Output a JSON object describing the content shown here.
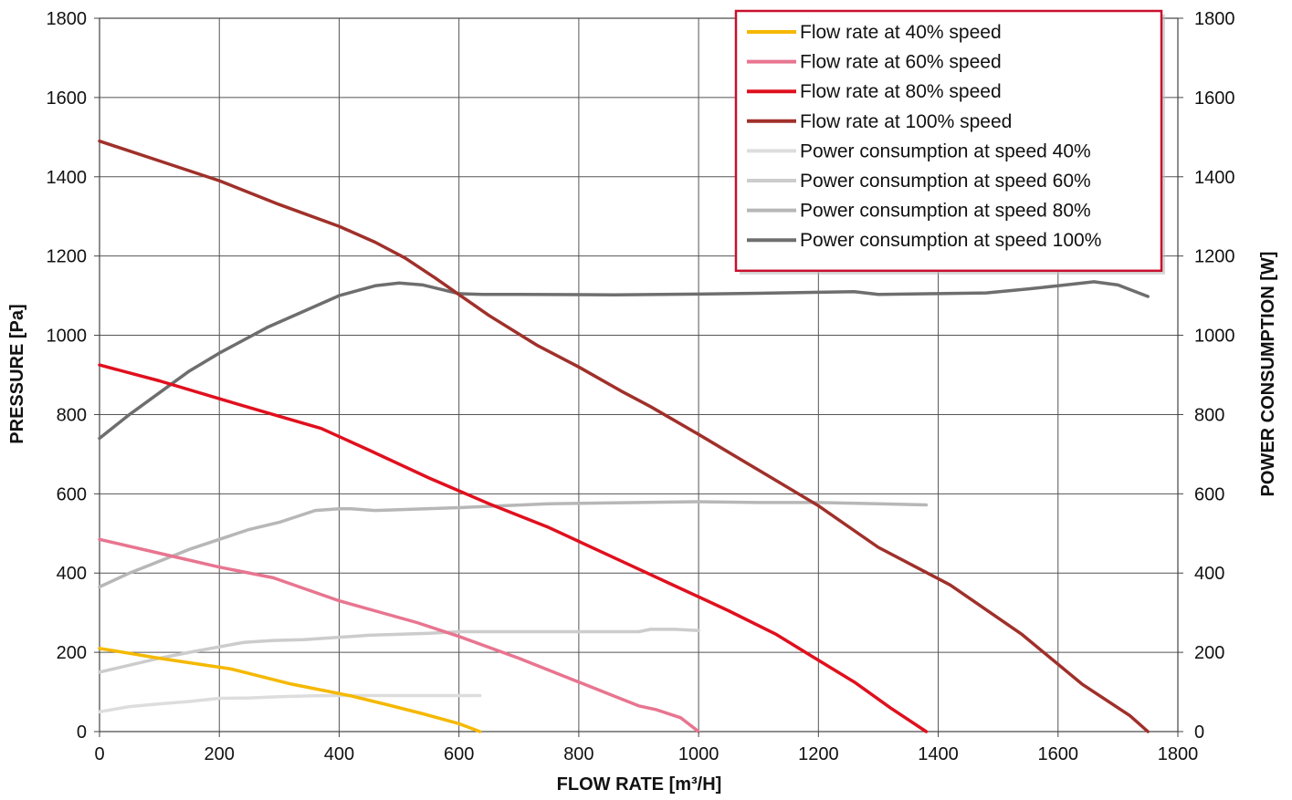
{
  "chart_data": {
    "type": "line",
    "xlabel": "FLOW RATE [m³/H]",
    "ylabel": "PRESSURE [Pa]",
    "y2label": "POWER CONSUMPTION [W]",
    "xlim": [
      0,
      1800
    ],
    "ylim": [
      0,
      1800
    ],
    "y2lim": [
      0,
      1800
    ],
    "xticks": [
      "0",
      "200",
      "400",
      "600",
      "800",
      "1000",
      "1200",
      "1400",
      "1600",
      "1800"
    ],
    "yticks": [
      "0",
      "200",
      "400",
      "600",
      "800",
      "1000",
      "1200",
      "1400",
      "1600",
      "1800"
    ],
    "y2ticks": [
      "0",
      "200",
      "400",
      "600",
      "800",
      "1000",
      "1200",
      "1400",
      "1600",
      "1800"
    ],
    "grid": true,
    "legend_position": "top-right",
    "legend_border_color": "#c8102e",
    "series": [
      {
        "name": "Flow rate at 40% speed",
        "color": "#f5b800",
        "axis": "left",
        "x": [
          0,
          100,
          220,
          320,
          420,
          480,
          540,
          600,
          635
        ],
        "y": [
          210,
          185,
          158,
          120,
          90,
          68,
          45,
          20,
          0
        ]
      },
      {
        "name": "Flow rate at 60% speed",
        "color": "#e87590",
        "axis": "left",
        "x": [
          0,
          100,
          200,
          290,
          400,
          530,
          600,
          700,
          800,
          900,
          930,
          970,
          1000
        ],
        "y": [
          485,
          450,
          415,
          388,
          330,
          275,
          240,
          185,
          125,
          65,
          55,
          35,
          0
        ]
      },
      {
        "name": "Flow rate at 80% speed",
        "color": "#e0101e",
        "axis": "left",
        "x": [
          0,
          100,
          200,
          290,
          370,
          450,
          550,
          650,
          750,
          850,
          950,
          1050,
          1130,
          1200,
          1260,
          1320,
          1380
        ],
        "y": [
          925,
          885,
          840,
          800,
          765,
          710,
          640,
          575,
          515,
          445,
          375,
          305,
          245,
          180,
          125,
          60,
          0
        ]
      },
      {
        "name": "Flow rate at 100% speed",
        "color": "#a0302a",
        "axis": "left",
        "x": [
          0,
          100,
          200,
          300,
          400,
          460,
          510,
          560,
          650,
          730,
          800,
          870,
          920,
          1000,
          1100,
          1200,
          1300,
          1420,
          1540,
          1640,
          1720,
          1750
        ],
        "y": [
          1490,
          1440,
          1390,
          1330,
          1275,
          1235,
          1195,
          1145,
          1050,
          975,
          920,
          860,
          820,
          750,
          660,
          570,
          465,
          370,
          245,
          120,
          40,
          0
        ]
      },
      {
        "name": "Power consumption at speed 40%",
        "color": "#dddddd",
        "axis": "right",
        "x": [
          0,
          50,
          100,
          150,
          200,
          250,
          300,
          350,
          400,
          450,
          500,
          550,
          600,
          635
        ],
        "y": [
          50,
          63,
          70,
          76,
          84,
          85,
          88,
          90,
          91,
          91,
          91,
          91,
          91,
          91
        ]
      },
      {
        "name": "Power consumption at speed 60%",
        "color": "#cccccc",
        "axis": "right",
        "x": [
          0,
          100,
          150,
          240,
          290,
          340,
          400,
          450,
          550,
          600,
          700,
          900,
          920,
          960,
          1000
        ],
        "y": [
          150,
          185,
          200,
          225,
          230,
          232,
          238,
          243,
          248,
          252,
          252,
          252,
          258,
          258,
          255
        ]
      },
      {
        "name": "Power consumption at speed 80%",
        "color": "#b7b7b7",
        "axis": "right",
        "x": [
          0,
          50,
          150,
          250,
          300,
          360,
          400,
          420,
          460,
          500,
          600,
          750,
          900,
          1000,
          1100,
          1200,
          1300,
          1380
        ],
        "y": [
          365,
          400,
          460,
          510,
          528,
          558,
          562,
          562,
          558,
          560,
          565,
          575,
          578,
          580,
          578,
          578,
          575,
          572
        ]
      },
      {
        "name": "Power consumption at speed 100%",
        "color": "#6e6e6e",
        "axis": "right",
        "x": [
          0,
          50,
          150,
          200,
          280,
          340,
          400,
          460,
          500,
          540,
          600,
          640,
          700,
          860,
          1000,
          1100,
          1260,
          1300,
          1400,
          1480,
          1550,
          1600,
          1660,
          1700,
          1750
        ],
        "y": [
          740,
          800,
          910,
          955,
          1020,
          1060,
          1100,
          1125,
          1132,
          1127,
          1105,
          1103,
          1103,
          1102,
          1104,
          1106,
          1110,
          1103,
          1105,
          1107,
          1117,
          1125,
          1135,
          1127,
          1098
        ]
      }
    ]
  }
}
